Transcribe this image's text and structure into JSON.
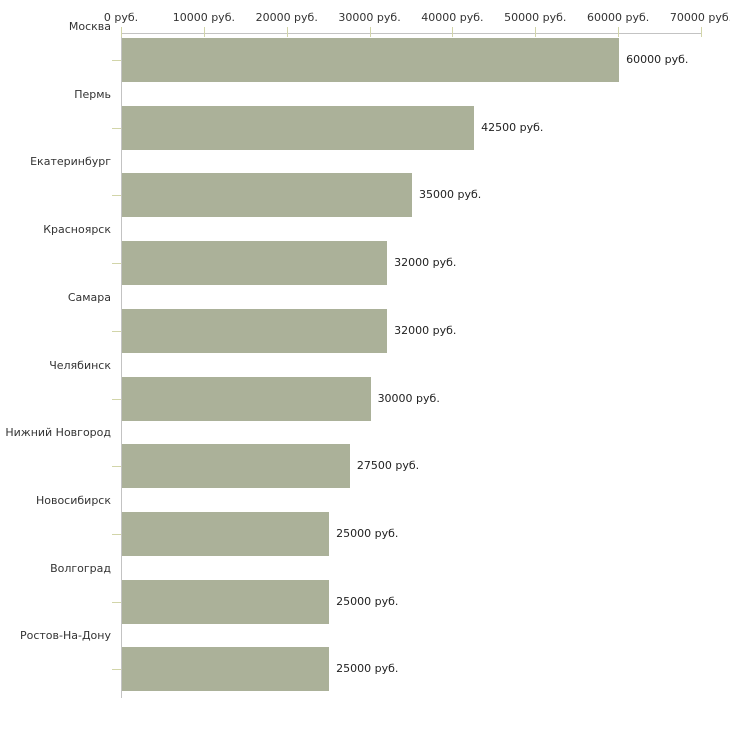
{
  "chart_data": {
    "type": "bar",
    "orientation": "horizontal",
    "title": "",
    "unit": "руб.",
    "categories": [
      "Москва",
      "Пермь",
      "Екатеринбург",
      "Красноярск",
      "Самара",
      "Челябинск",
      "Нижний Новгород",
      "Новосибирск",
      "Волгоград",
      "Ростов-На-Дону"
    ],
    "values": [
      60000,
      42500,
      35000,
      32000,
      32000,
      30000,
      27500,
      25000,
      25000,
      25000
    ],
    "value_labels": [
      "60000 руб.",
      "42500 руб.",
      "35000 руб.",
      "32000 руб.",
      "32000 руб.",
      "30000 руб.",
      "27500 руб.",
      "25000 руб.",
      "25000 руб.",
      "25000 руб."
    ],
    "x_ticks": [
      0,
      10000,
      20000,
      30000,
      40000,
      50000,
      60000,
      70000
    ],
    "x_tick_labels": [
      "0 руб.",
      "10000 руб.",
      "20000 руб.",
      "30000 руб.",
      "40000 руб.",
      "50000 руб.",
      "60000 руб.",
      "70000 руб."
    ],
    "xlim": [
      0,
      70000
    ],
    "grid": false,
    "legend": false,
    "axis_position": "top",
    "colors": {
      "bar": "#abb199",
      "axis_line": "#c3c3c3",
      "tick_mark": "#d2d5a9",
      "text": "#333333"
    }
  }
}
